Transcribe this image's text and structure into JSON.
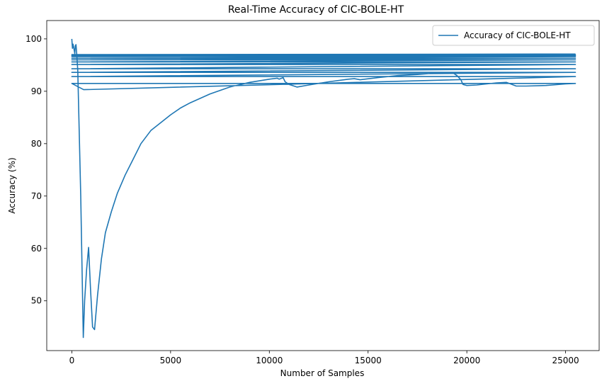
{
  "chart_data": {
    "type": "line",
    "title": "Real-Time Accuracy of CIC-BOLE-HT",
    "xlabel": "Number of Samples",
    "ylabel": "Accuracy (%)",
    "xlim": [
      -1270,
      26700
    ],
    "ylim": [
      40.5,
      103.5
    ],
    "xticks": [
      0,
      5000,
      10000,
      15000,
      20000,
      25000
    ],
    "yticks": [
      50,
      60,
      70,
      80,
      90,
      100
    ],
    "xtick_labels": [
      "0",
      "5000",
      "10000",
      "15000",
      "20000",
      "25000"
    ],
    "ytick_labels": [
      "50",
      "60",
      "70",
      "80",
      "90",
      "100"
    ],
    "grid": false,
    "legend": {
      "position": "top-right",
      "entries": [
        "Accuracy of CIC-BOLE-HT"
      ]
    },
    "series": [
      {
        "name": "Accuracy of CIC-BOLE-HT",
        "color": "#1f77b4",
        "x": [
          0,
          30,
          60,
          90,
          120,
          150,
          180,
          210,
          250,
          300,
          450,
          580,
          650,
          750,
          850,
          950,
          1050,
          1150,
          1300,
          1500,
          1700,
          2000,
          2300,
          2700,
          3100,
          3500,
          4000,
          4500,
          5000,
          5500,
          6000,
          7000,
          8000,
          9000,
          10000,
          10400,
          10500,
          10700,
          10800,
          11000,
          11400,
          12000,
          13000,
          14000,
          14300,
          14600,
          15500,
          16500,
          17500,
          18500,
          19300,
          19500,
          19700,
          19800,
          20000,
          20500,
          21000,
          21500,
          22000,
          22500,
          23000,
          24000,
          25000,
          25500,
          0,
          600,
          25500,
          0,
          25500,
          0,
          25500,
          0,
          25500,
          0,
          25500,
          0,
          25500,
          0,
          25500,
          0,
          25500,
          0,
          25500,
          0,
          25500,
          0,
          25500
        ],
        "y": [
          100,
          98.2,
          99,
          98.5,
          97.8,
          97.2,
          98.7,
          98.9,
          97,
          94,
          70,
          43,
          50,
          56,
          60.2,
          52,
          45,
          44.5,
          51,
          58,
          63,
          67,
          70.5,
          74,
          77,
          80,
          82.5,
          84,
          85.5,
          86.8,
          87.8,
          89.5,
          90.8,
          91.7,
          92.3,
          92.5,
          92.3,
          92.6,
          91.8,
          91.3,
          90.8,
          91.2,
          91.8,
          92.3,
          92.4,
          92.2,
          92.6,
          93,
          93.2,
          93.5,
          93.5,
          93,
          92.2,
          91.3,
          91.1,
          91.2,
          91.4,
          91.6,
          91.7,
          91,
          91,
          91.1,
          91.4,
          91.5,
          91.5,
          90.3,
          92.8,
          92.8,
          93.6,
          93.6,
          94.3,
          94.3,
          95.1,
          95.1,
          95.6,
          95.6,
          96,
          96,
          96.3,
          96.3,
          96.6,
          96.6,
          96.8,
          96.8,
          97,
          97,
          97.1
        ]
      }
    ]
  }
}
